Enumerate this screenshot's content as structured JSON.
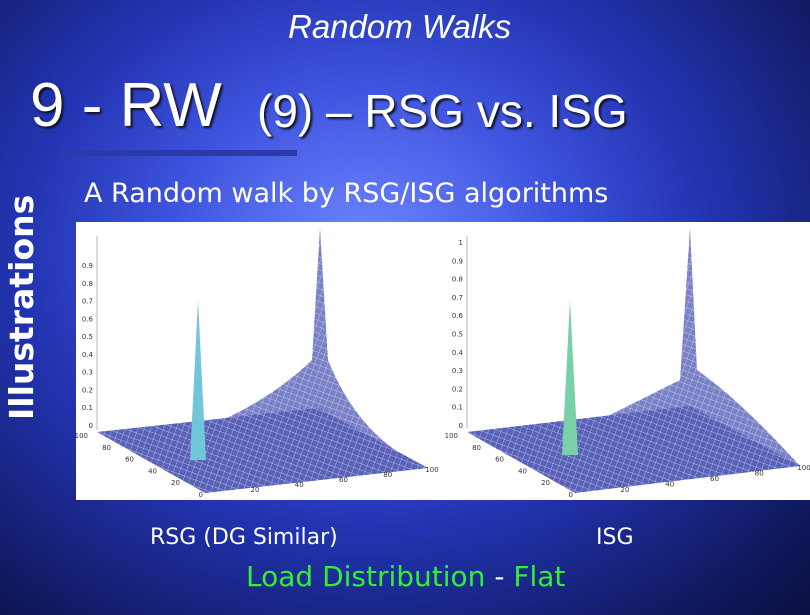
{
  "header": {
    "section": "Random Walks",
    "title_main": "9 - RW",
    "title_sub": "(9) – RSG vs. ISG"
  },
  "sidebar": {
    "label": "Illustrations"
  },
  "subtitle": "A Random walk by RSG/ISG algorithms",
  "figures": [
    {
      "caption": "RSG (DG Similar)",
      "zticks": [
        "0.9",
        "0.8",
        "0.7",
        "0.6",
        "0.5",
        "0.4",
        "0.3",
        "0.2",
        "0.1",
        "0"
      ],
      "left_ticks": [
        "100",
        "80",
        "60",
        "40",
        "20",
        "0"
      ],
      "right_ticks": [
        "20",
        "40",
        "60",
        "80",
        "100"
      ]
    },
    {
      "caption": "ISG",
      "zticks": [
        "1",
        "0.9",
        "0.8",
        "0.7",
        "0.6",
        "0.5",
        "0.4",
        "0.3",
        "0.2",
        "0.1",
        "0"
      ],
      "left_ticks": [
        "100",
        "80",
        "60",
        "40",
        "20",
        "0"
      ],
      "right_ticks": [
        "20",
        "40",
        "60",
        "80",
        "100"
      ]
    }
  ],
  "footer": {
    "left": "Load Distribution",
    "dash": "-",
    "right": "Flat"
  }
}
